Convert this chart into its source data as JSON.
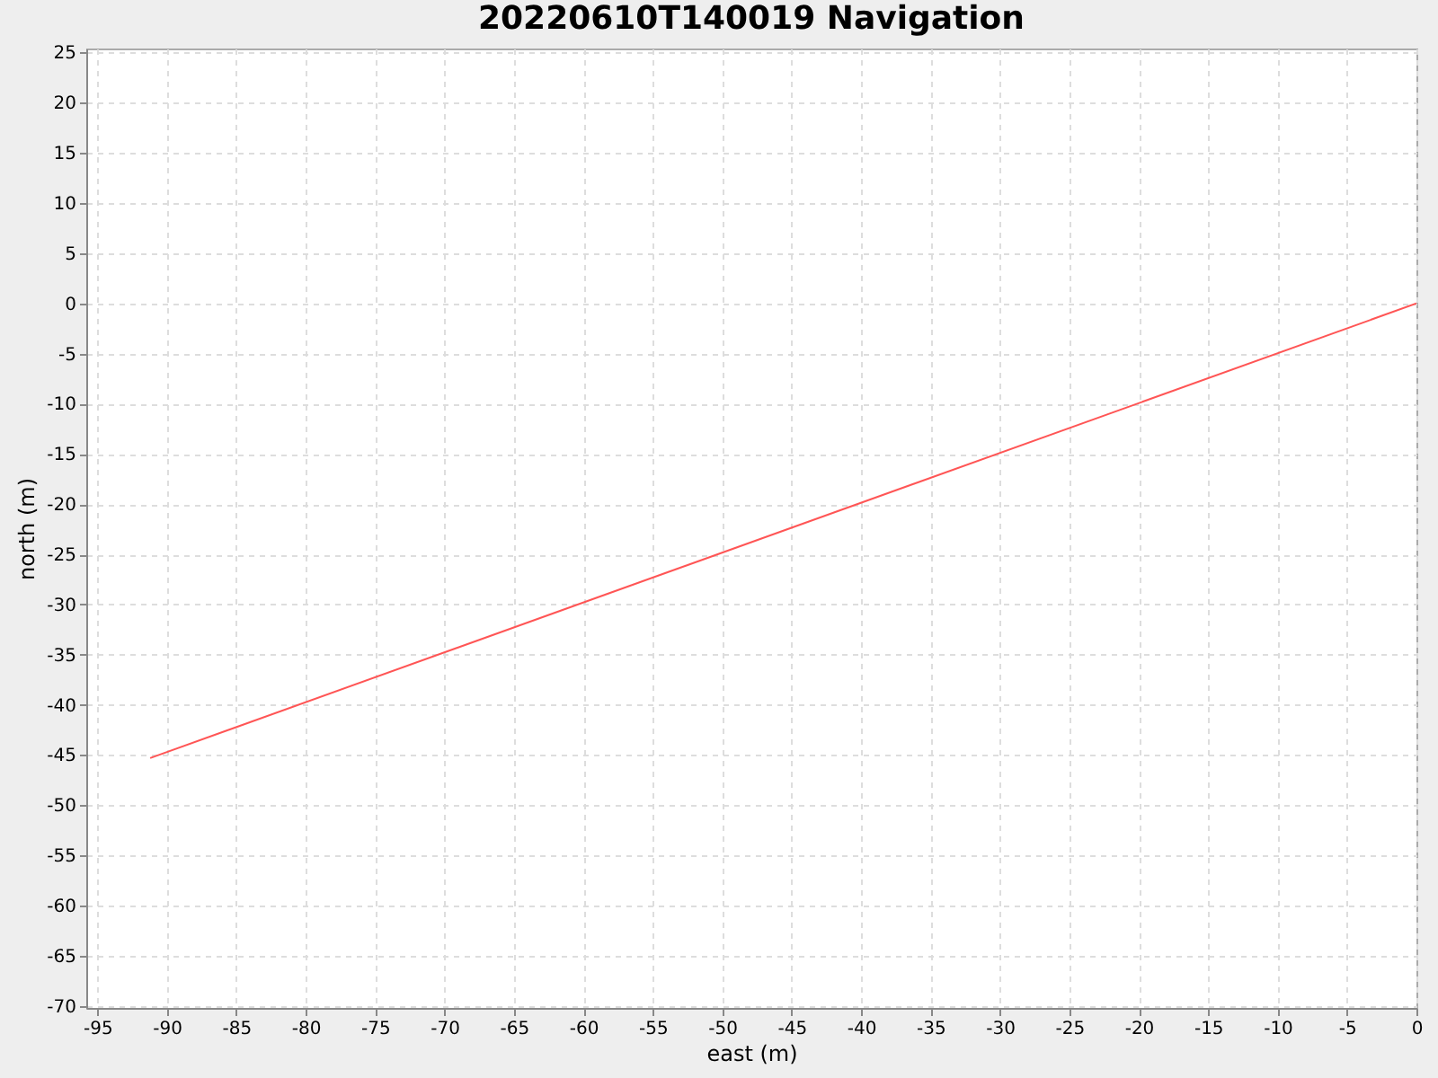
{
  "chart_data": {
    "type": "line",
    "title": "20220610T140019 Navigation",
    "xlabel": "east (m)",
    "ylabel": "north (m)",
    "x": [
      -91.2,
      0
    ],
    "series": [
      {
        "color": "#ff5555",
        "values": [
          -45.3,
          0
        ]
      }
    ],
    "xlim": [
      -95.8,
      0
    ],
    "ylim": [
      -70.2,
      25.4
    ],
    "xticks": [
      -95,
      -90,
      -85,
      -80,
      -75,
      -70,
      -65,
      -60,
      -55,
      -50,
      -45,
      -40,
      -35,
      -30,
      -25,
      -20,
      -15,
      -10,
      -5,
      0
    ],
    "yticks": [
      -70,
      -65,
      -60,
      -55,
      -50,
      -45,
      -40,
      -35,
      -30,
      -25,
      -20,
      -15,
      -10,
      -5,
      0,
      5,
      10,
      15,
      20,
      25
    ],
    "grid": true
  }
}
